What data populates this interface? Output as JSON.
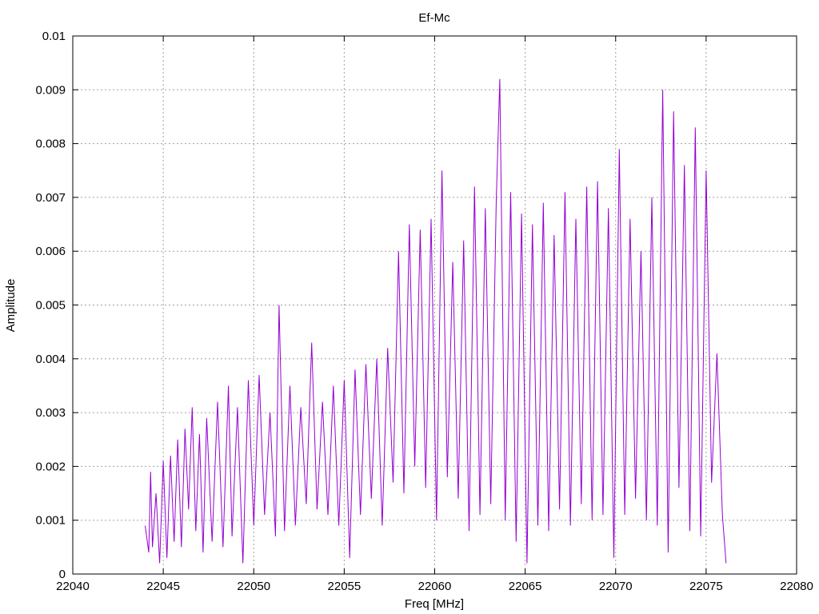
{
  "chart_data": {
    "type": "line",
    "title": "Ef-Mc",
    "xlabel": "Freq [MHz]",
    "ylabel": "Amplitude",
    "xlim": [
      22040,
      22080
    ],
    "ylim": [
      0,
      0.01
    ],
    "grid": true,
    "x_ticks": [
      "22040",
      "22045",
      "22050",
      "22055",
      "22060",
      "22065",
      "22070",
      "22075",
      "22080"
    ],
    "y_ticks": [
      "0",
      "0.001",
      "0.002",
      "0.003",
      "0.004",
      "0.005",
      "0.006",
      "0.007",
      "0.008",
      "0.009",
      "0.01"
    ],
    "series": [
      {
        "color": "#9400d3",
        "x": [
          22044.0,
          22044.2,
          22044.3,
          22044.4,
          22044.6,
          22044.8,
          22045.0,
          22045.2,
          22045.4,
          22045.6,
          22045.8,
          22046.0,
          22046.2,
          22046.4,
          22046.6,
          22046.8,
          22047.0,
          22047.2,
          22047.4,
          22047.7,
          22048.0,
          22048.3,
          22048.6,
          22048.8,
          22049.1,
          22049.4,
          22049.7,
          22050.0,
          22050.3,
          22050.6,
          22050.9,
          22051.2,
          22051.4,
          22051.7,
          22052.0,
          22052.3,
          22052.6,
          22052.9,
          22053.2,
          22053.5,
          22053.8,
          22054.1,
          22054.4,
          22054.7,
          22055.0,
          22055.3,
          22055.6,
          22055.9,
          22056.2,
          22056.5,
          22056.8,
          22057.1,
          22057.4,
          22057.7,
          22058.0,
          22058.3,
          22058.6,
          22058.9,
          22059.2,
          22059.5,
          22059.8,
          22060.1,
          22060.4,
          22060.7,
          22061.0,
          22061.3,
          22061.6,
          22061.9,
          22062.2,
          22062.5,
          22062.8,
          22063.1,
          22063.4,
          22063.6,
          22063.9,
          22064.2,
          22064.5,
          22064.8,
          22065.1,
          22065.4,
          22065.7,
          22066.0,
          22066.3,
          22066.6,
          22066.9,
          22067.2,
          22067.5,
          22067.8,
          22068.1,
          22068.4,
          22068.7,
          22069.0,
          22069.3,
          22069.6,
          22069.9,
          22070.2,
          22070.5,
          22070.8,
          22071.1,
          22071.4,
          22071.7,
          22072.0,
          22072.3,
          22072.6,
          22072.9,
          22073.2,
          22073.5,
          22073.8,
          22074.1,
          22074.4,
          22074.7,
          22075.0,
          22075.3,
          22075.6,
          22075.9,
          22076.1
        ],
        "y": [
          0.0009,
          0.0004,
          0.0019,
          0.0005,
          0.0015,
          0.0002,
          0.0021,
          0.0003,
          0.0022,
          0.0006,
          0.0025,
          0.0005,
          0.0027,
          0.0012,
          0.0031,
          0.0008,
          0.0026,
          0.0004,
          0.0029,
          0.0006,
          0.0032,
          0.0005,
          0.0035,
          0.0007,
          0.0031,
          0.0002,
          0.0036,
          0.0009,
          0.0037,
          0.0011,
          0.003,
          0.0007,
          0.005,
          0.0008,
          0.0035,
          0.0009,
          0.0031,
          0.0013,
          0.0043,
          0.0012,
          0.0032,
          0.0011,
          0.0035,
          0.0009,
          0.0036,
          0.0003,
          0.0038,
          0.0011,
          0.0039,
          0.0014,
          0.004,
          0.0009,
          0.0042,
          0.0017,
          0.006,
          0.0015,
          0.0065,
          0.002,
          0.0064,
          0.0016,
          0.0066,
          0.001,
          0.0075,
          0.0018,
          0.0058,
          0.0014,
          0.0062,
          0.0008,
          0.0072,
          0.0011,
          0.0068,
          0.0013,
          0.0069,
          0.0092,
          0.001,
          0.0071,
          0.0006,
          0.0067,
          0.0002,
          0.0065,
          0.0009,
          0.0069,
          0.0008,
          0.0063,
          0.0012,
          0.0071,
          0.0009,
          0.0066,
          0.0013,
          0.0072,
          0.001,
          0.0073,
          0.0011,
          0.0068,
          0.0003,
          0.0079,
          0.0011,
          0.0066,
          0.0014,
          0.006,
          0.001,
          0.007,
          0.0009,
          0.009,
          0.0004,
          0.0086,
          0.0016,
          0.0076,
          0.0008,
          0.0083,
          0.0007,
          0.0075,
          0.0017,
          0.0041,
          0.0011,
          0.0002
        ]
      }
    ]
  }
}
